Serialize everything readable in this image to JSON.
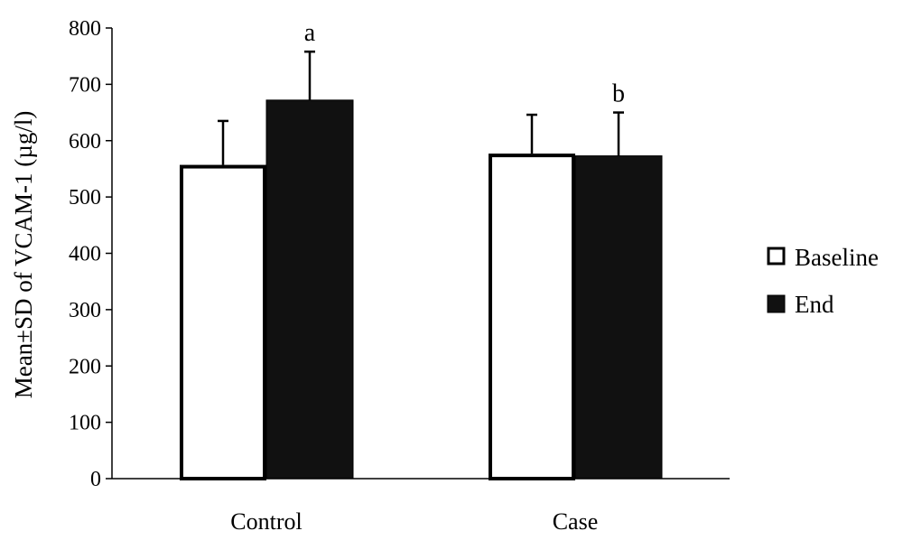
{
  "chart_data": {
    "type": "bar",
    "categories": [
      "Control",
      "Case"
    ],
    "series": [
      {
        "name": "Baseline",
        "values": [
          557,
          577
        ],
        "sd": [
          78,
          69
        ],
        "color": "#ffffff"
      },
      {
        "name": "End",
        "values": [
          672,
          573
        ],
        "sd": [
          86,
          77
        ],
        "color": "#111111"
      }
    ],
    "annotations": [
      "a",
      "b"
    ],
    "ylabel": "Mean±SD  of VCAM-1 (µg/l)",
    "xlabel": "",
    "ylim": [
      0,
      800
    ],
    "yticks": [
      "0",
      "100",
      "200",
      "300",
      "400",
      "500",
      "600",
      "700",
      "800"
    ],
    "grid": false,
    "legend_position": "right"
  }
}
